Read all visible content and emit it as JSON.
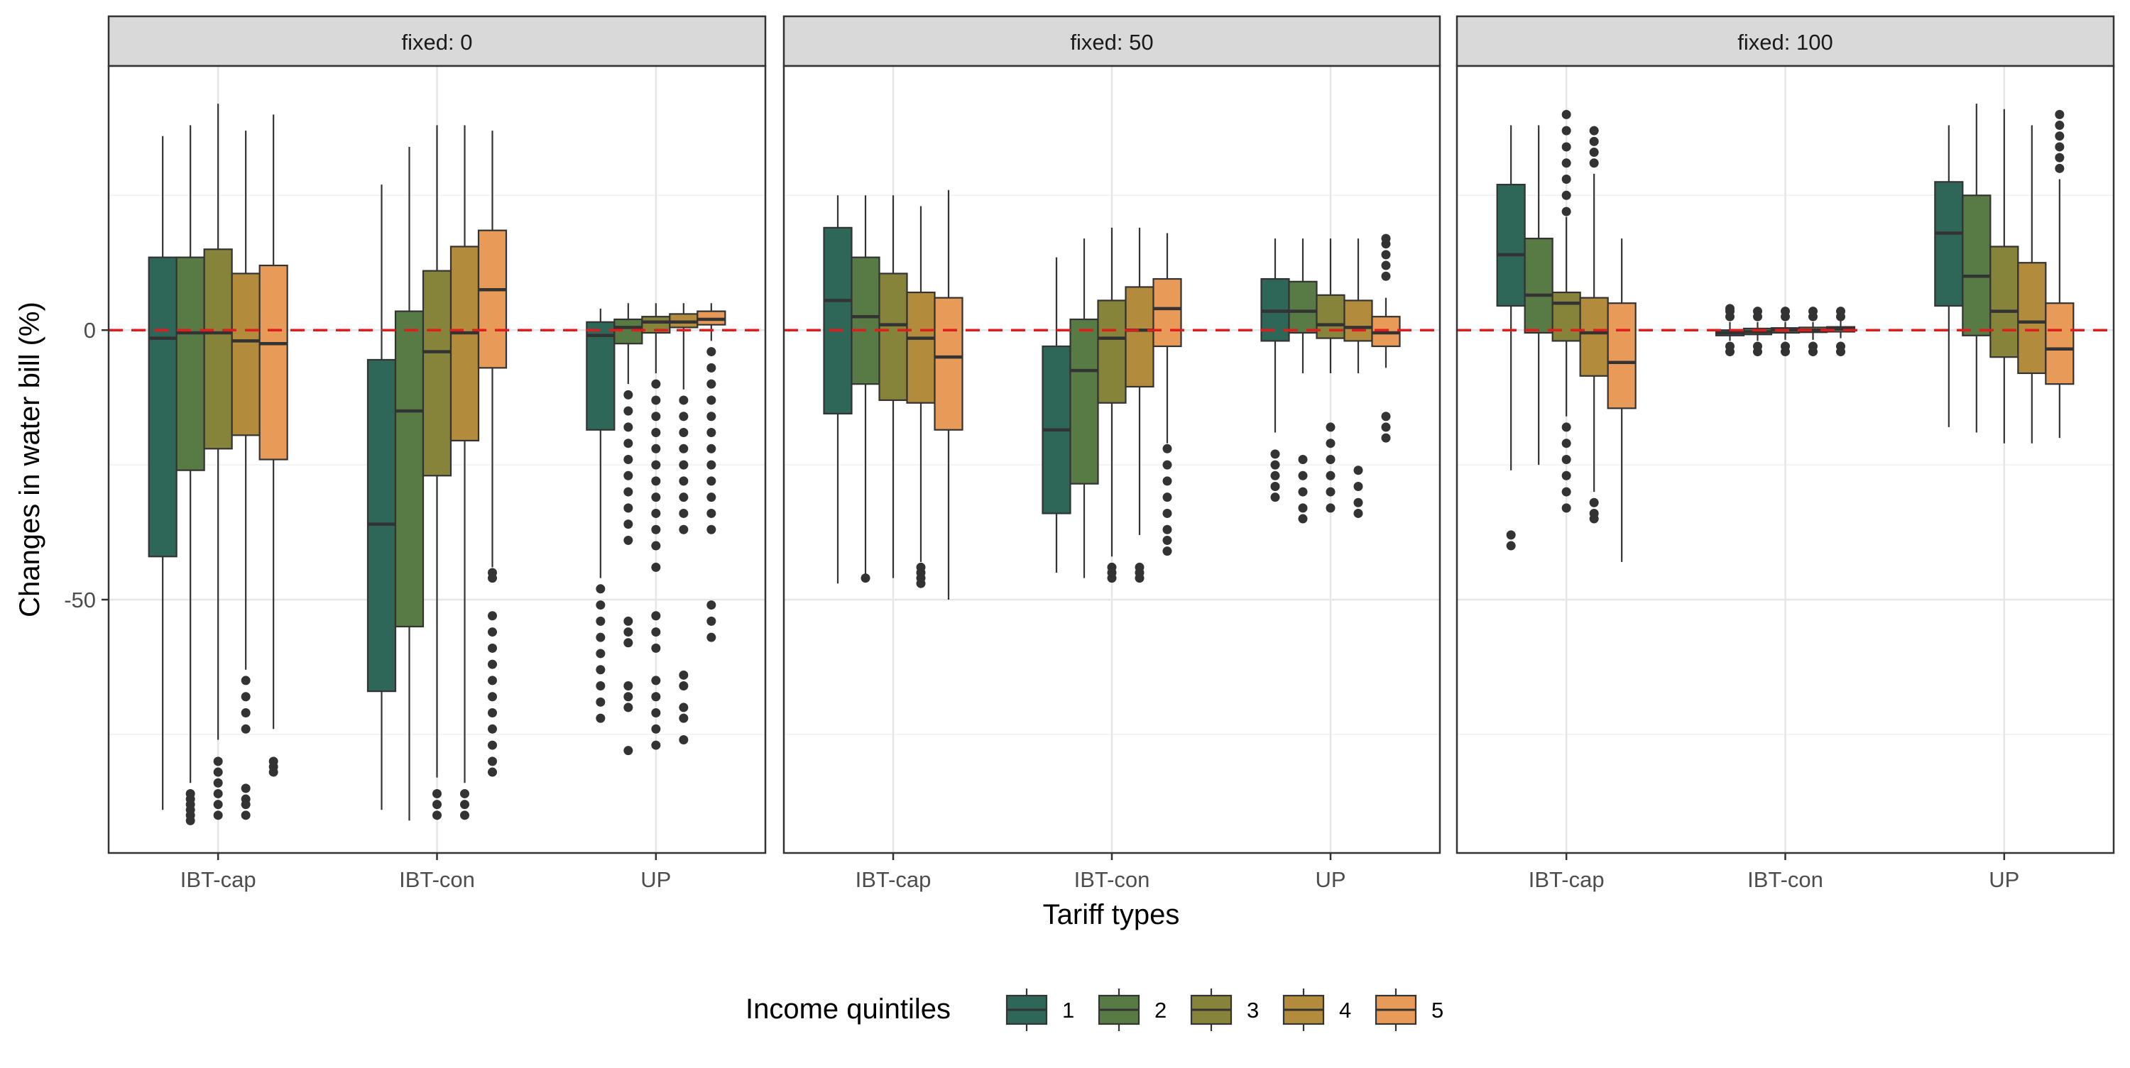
{
  "chart_data": {
    "type": "boxplot",
    "ylabel": "Changes in water bill (%)",
    "xlabel": "Tariff types",
    "ylim": [
      -97,
      49
    ],
    "y_ticks": [
      -50,
      0
    ],
    "y_tick_labels": [
      "-50",
      "0"
    ],
    "reference_line": {
      "y": 0,
      "color": "#e41a1c",
      "style": "dashed"
    },
    "categories": [
      "IBT-cap",
      "IBT-con",
      "UP"
    ],
    "legend": {
      "title": "Income quintiles",
      "entries": [
        "1",
        "2",
        "3",
        "4",
        "5"
      ],
      "position": "bottom"
    },
    "colors": [
      "#2e6657",
      "#587a44",
      "#86843a",
      "#b28c3c",
      "#e89b58"
    ],
    "panels": [
      {
        "strip": "fixed: 0",
        "groups": [
          {
            "category": "IBT-cap",
            "boxes": [
              {
                "quintile": "1",
                "min": -89,
                "q1": -42,
                "median": -1.5,
                "q3": 13.5,
                "max": 36,
                "outliers": []
              },
              {
                "quintile": "2",
                "min": -84,
                "q1": -26,
                "median": -0.5,
                "q3": 13.5,
                "max": 38,
                "outliers": [
                  -86,
                  -87,
                  -88,
                  -89,
                  -90,
                  -91
                ]
              },
              {
                "quintile": "3",
                "min": -76,
                "q1": -22,
                "median": -0.5,
                "q3": 15,
                "max": 42,
                "outliers": [
                  -80,
                  -82,
                  -84,
                  -86,
                  -88,
                  -90
                ]
              },
              {
                "quintile": "4",
                "min": -63,
                "q1": -19.5,
                "median": -2,
                "q3": 10.5,
                "max": 37,
                "outliers": [
                  -65,
                  -68,
                  -71,
                  -74,
                  -85,
                  -87,
                  -88,
                  -90
                ]
              },
              {
                "quintile": "5",
                "min": -74,
                "q1": -24,
                "median": -2.5,
                "q3": 12,
                "max": 40,
                "outliers": [
                  -80,
                  -81,
                  -82
                ]
              }
            ]
          },
          {
            "category": "IBT-con",
            "boxes": [
              {
                "quintile": "1",
                "min": -89,
                "q1": -67,
                "median": -36,
                "q3": -5.5,
                "max": 27,
                "outliers": []
              },
              {
                "quintile": "2",
                "min": -91,
                "q1": -55,
                "median": -15,
                "q3": 3.5,
                "max": 34,
                "outliers": []
              },
              {
                "quintile": "3",
                "min": -83,
                "q1": -27,
                "median": -4,
                "q3": 11,
                "max": 38,
                "outliers": [
                  -86,
                  -88,
                  -90
                ]
              },
              {
                "quintile": "4",
                "min": -84,
                "q1": -20.5,
                "median": -0.5,
                "q3": 15.5,
                "max": 38,
                "outliers": [
                  -86,
                  -88,
                  -90
                ]
              },
              {
                "quintile": "5",
                "min": -44,
                "q1": -7,
                "median": 7.5,
                "q3": 18.5,
                "max": 37,
                "outliers": [
                  -45,
                  -46,
                  -53,
                  -56,
                  -59,
                  -62,
                  -65,
                  -68,
                  -71,
                  -74,
                  -77,
                  -80,
                  -82
                ]
              }
            ]
          },
          {
            "category": "UP",
            "boxes": [
              {
                "quintile": "1",
                "min": -46,
                "q1": -18.5,
                "median": -1,
                "q3": 1.5,
                "max": 4,
                "outliers": [
                  -48,
                  -51,
                  -54,
                  -57,
                  -60,
                  -63,
                  -66,
                  -69,
                  -72
                ]
              },
              {
                "quintile": "2",
                "min": -10,
                "q1": -2.5,
                "median": 0.5,
                "q3": 2,
                "max": 5,
                "outliers": [
                  -12,
                  -15,
                  -18,
                  -21,
                  -24,
                  -27,
                  -30,
                  -33,
                  -36,
                  -39,
                  -54,
                  -56,
                  -58,
                  -66,
                  -68,
                  -70,
                  -78
                ]
              },
              {
                "quintile": "3",
                "min": -8,
                "q1": -0.5,
                "median": 1.5,
                "q3": 2.5,
                "max": 5,
                "outliers": [
                  -10,
                  -13,
                  -16,
                  -19,
                  -22,
                  -25,
                  -28,
                  -31,
                  -34,
                  -37,
                  -40,
                  -44,
                  -53,
                  -56,
                  -59,
                  -65,
                  -68,
                  -71,
                  -74,
                  -77
                ]
              },
              {
                "quintile": "4",
                "min": -11,
                "q1": 0.5,
                "median": 1.5,
                "q3": 3,
                "max": 5,
                "outliers": [
                  -13,
                  -16,
                  -19,
                  -22,
                  -25,
                  -28,
                  -31,
                  -34,
                  -37,
                  -64,
                  -66,
                  -70,
                  -72,
                  -76
                ]
              },
              {
                "quintile": "5",
                "min": -2,
                "q1": 1,
                "median": 2,
                "q3": 3.5,
                "max": 5,
                "outliers": [
                  -4,
                  -7,
                  -10,
                  -13,
                  -16,
                  -19,
                  -22,
                  -25,
                  -28,
                  -31,
                  -34,
                  -37,
                  -51,
                  -54,
                  -57
                ]
              }
            ]
          }
        ]
      },
      {
        "strip": "fixed: 50",
        "groups": [
          {
            "category": "IBT-cap",
            "boxes": [
              {
                "quintile": "1",
                "min": -47,
                "q1": -15.5,
                "median": 5.5,
                "q3": 19,
                "max": 25,
                "outliers": []
              },
              {
                "quintile": "2",
                "min": -46,
                "q1": -10,
                "median": 2.5,
                "q3": 13.5,
                "max": 25,
                "outliers": [
                  -46
                ]
              },
              {
                "quintile": "3",
                "min": -46,
                "q1": -13,
                "median": 1,
                "q3": 10.5,
                "max": 25,
                "outliers": []
              },
              {
                "quintile": "4",
                "min": -43,
                "q1": -13.5,
                "median": -1.5,
                "q3": 7,
                "max": 23,
                "outliers": [
                  -44,
                  -45,
                  -46,
                  -47
                ]
              },
              {
                "quintile": "5",
                "min": -50,
                "q1": -18.5,
                "median": -5,
                "q3": 6,
                "max": 26,
                "outliers": []
              }
            ]
          },
          {
            "category": "IBT-con",
            "boxes": [
              {
                "quintile": "1",
                "min": -45,
                "q1": -34,
                "median": -18.5,
                "q3": -3,
                "max": 13.5,
                "outliers": []
              },
              {
                "quintile": "2",
                "min": -46,
                "q1": -28.5,
                "median": -7.5,
                "q3": 2,
                "max": 17,
                "outliers": []
              },
              {
                "quintile": "3",
                "min": -42,
                "q1": -13.5,
                "median": -1.5,
                "q3": 5.5,
                "max": 19,
                "outliers": [
                  -44,
                  -45,
                  -46
                ]
              },
              {
                "quintile": "4",
                "min": -38,
                "q1": -10.5,
                "median": 0,
                "q3": 8,
                "max": 19,
                "outliers": [
                  -44,
                  -45,
                  -46
                ]
              },
              {
                "quintile": "5",
                "min": -21,
                "q1": -3,
                "median": 4,
                "q3": 9.5,
                "max": 18,
                "outliers": [
                  -22,
                  -25,
                  -28,
                  -31,
                  -34,
                  -37,
                  -39,
                  -41
                ]
              }
            ]
          },
          {
            "category": "UP",
            "boxes": [
              {
                "quintile": "1",
                "min": -19,
                "q1": -2,
                "median": 3.5,
                "q3": 9.5,
                "max": 17,
                "outliers": [
                  -23,
                  -25,
                  -27,
                  -29,
                  -31
                ]
              },
              {
                "quintile": "2",
                "min": -8,
                "q1": -0.5,
                "median": 3.5,
                "q3": 9,
                "max": 17,
                "outliers": [
                  -24,
                  -27,
                  -30,
                  -33,
                  -35
                ]
              },
              {
                "quintile": "3",
                "min": -8,
                "q1": -1.5,
                "median": 1,
                "q3": 6.5,
                "max": 17,
                "outliers": [
                  -18,
                  -21,
                  -24,
                  -27,
                  -30,
                  -33
                ]
              },
              {
                "quintile": "4",
                "min": -8,
                "q1": -2,
                "median": 0.5,
                "q3": 5.5,
                "max": 17,
                "outliers": [
                  -26,
                  -29,
                  -32,
                  -34
                ]
              },
              {
                "quintile": "5",
                "min": -7,
                "q1": -3,
                "median": -0.5,
                "q3": 2.5,
                "max": 6,
                "outliers": [
                  10,
                  12,
                  14,
                  16,
                  17,
                  -16,
                  -18,
                  -20
                ]
              }
            ]
          }
        ]
      },
      {
        "strip": "fixed: 100",
        "groups": [
          {
            "category": "IBT-cap",
            "boxes": [
              {
                "quintile": "1",
                "min": -26,
                "q1": 4.5,
                "median": 14,
                "q3": 27,
                "max": 38,
                "outliers": [
                  -38,
                  -40
                ]
              },
              {
                "quintile": "2",
                "min": -25,
                "q1": -0.5,
                "median": 6.5,
                "q3": 17,
                "max": 38,
                "outliers": []
              },
              {
                "quintile": "3",
                "min": -16,
                "q1": -2,
                "median": 5,
                "q3": 7,
                "max": 21,
                "outliers": [
                  22,
                  25,
                  28,
                  31,
                  34,
                  37,
                  40,
                  -18,
                  -21,
                  -24,
                  -27,
                  -30,
                  -33
                ]
              },
              {
                "quintile": "4",
                "min": -30,
                "q1": -8.5,
                "median": -0.5,
                "q3": 6,
                "max": 29,
                "outliers": [
                  31,
                  33,
                  35,
                  37,
                  -32,
                  -34,
                  -35
                ]
              },
              {
                "quintile": "5",
                "min": -43,
                "q1": -14.5,
                "median": -6,
                "q3": 5,
                "max": 17,
                "outliers": []
              }
            ]
          },
          {
            "category": "IBT-con",
            "boxes": [
              {
                "quintile": "1",
                "min": -2,
                "q1": -1,
                "median": -0.5,
                "q3": 0,
                "max": 1.5,
                "outliers": [
                  2.5,
                  3.5,
                  4,
                  -3,
                  -4
                ]
              },
              {
                "quintile": "2",
                "min": -2,
                "q1": -0.8,
                "median": -0.3,
                "q3": 0.3,
                "max": 1.5,
                "outliers": [
                  2.5,
                  3.5,
                  -3,
                  -4
                ]
              },
              {
                "quintile": "3",
                "min": -1.8,
                "q1": -0.5,
                "median": 0,
                "q3": 0.4,
                "max": 1.5,
                "outliers": [
                  2.5,
                  3.5,
                  -3,
                  -4
                ]
              },
              {
                "quintile": "4",
                "min": -1.8,
                "q1": -0.4,
                "median": 0,
                "q3": 0.5,
                "max": 1.5,
                "outliers": [
                  2.5,
                  3.5,
                  -3,
                  -4
                ]
              },
              {
                "quintile": "5",
                "min": -1.5,
                "q1": -0.3,
                "median": 0.2,
                "q3": 0.6,
                "max": 1.8,
                "outliers": [
                  2.5,
                  3.5,
                  -3,
                  -4
                ]
              }
            ]
          },
          {
            "category": "UP",
            "boxes": [
              {
                "quintile": "1",
                "min": -18,
                "q1": 4.5,
                "median": 18,
                "q3": 27.5,
                "max": 38,
                "outliers": []
              },
              {
                "quintile": "2",
                "min": -19,
                "q1": -1,
                "median": 10,
                "q3": 25,
                "max": 42,
                "outliers": []
              },
              {
                "quintile": "3",
                "min": -21,
                "q1": -5,
                "median": 3.5,
                "q3": 15.5,
                "max": 41,
                "outliers": []
              },
              {
                "quintile": "4",
                "min": -21,
                "q1": -8,
                "median": 1.5,
                "q3": 12.5,
                "max": 38,
                "outliers": []
              },
              {
                "quintile": "5",
                "min": -20,
                "q1": -10,
                "median": -3.5,
                "q3": 5,
                "max": 28,
                "outliers": [
                  30,
                  32,
                  34,
                  36,
                  38,
                  40
                ]
              }
            ]
          }
        ]
      }
    ]
  }
}
